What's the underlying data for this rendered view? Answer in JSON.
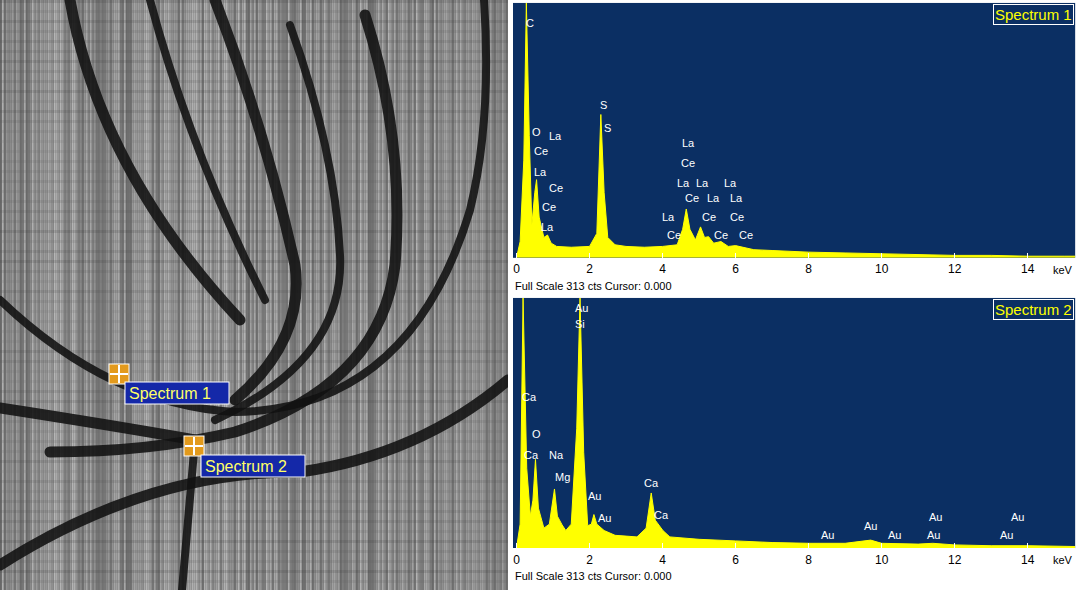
{
  "image": {
    "markers": [
      {
        "label": "Spectrum 1"
      },
      {
        "label": "Spectrum 2"
      }
    ]
  },
  "chart_data": [
    {
      "type": "area",
      "title": "Spectrum 1",
      "color": "#ffff00",
      "x": [
        0,
        0.1,
        0.2,
        0.27,
        0.35,
        0.42,
        0.5,
        0.55,
        0.62,
        0.75,
        0.85,
        0.95,
        1.1,
        1.5,
        2.0,
        2.2,
        2.31,
        2.4,
        2.5,
        2.7,
        3.0,
        3.5,
        4.0,
        4.4,
        4.55,
        4.65,
        4.75,
        4.9,
        5.04,
        5.15,
        5.26,
        5.4,
        5.6,
        5.8,
        6.0,
        6.5,
        7,
        8,
        9,
        10,
        11,
        12,
        13,
        14,
        15,
        15.3
      ],
      "values": [
        0,
        20,
        120,
        313,
        150,
        40,
        80,
        96,
        50,
        25,
        28,
        18,
        14,
        13,
        14,
        30,
        176,
        80,
        25,
        16,
        14,
        13,
        14,
        16,
        35,
        60,
        35,
        22,
        38,
        25,
        26,
        18,
        20,
        14,
        15,
        10,
        9,
        7,
        6,
        5,
        4,
        3,
        3,
        2,
        2,
        2
      ],
      "xlim": [
        -0.1,
        15.3
      ],
      "xticks": [
        0,
        2,
        4,
        6,
        8,
        10,
        12,
        14
      ],
      "ylim": [
        0,
        313
      ],
      "tick_labels": "x",
      "grid": false,
      "xlabel": "keV",
      "footer": "Full Scale 313 cts Cursor: 0.000",
      "annotations": [
        {
          "text": "C",
          "x": 0.36,
          "y": 288
        },
        {
          "text": "O",
          "x": 0.55,
          "y": 154
        },
        {
          "text": "La",
          "x": 1.07,
          "y": 150
        },
        {
          "text": "Ce",
          "x": 0.68,
          "y": 131
        },
        {
          "text": "La",
          "x": 0.66,
          "y": 106
        },
        {
          "text": "Ce",
          "x": 1.07,
          "y": 86
        },
        {
          "text": "Ce",
          "x": 0.9,
          "y": 63
        },
        {
          "text": "La",
          "x": 0.85,
          "y": 38
        },
        {
          "text": "S",
          "x": 2.38,
          "y": 188
        },
        {
          "text": "S",
          "x": 2.49,
          "y": 159
        },
        {
          "text": "La",
          "x": 4.71,
          "y": 141
        },
        {
          "text": "Ce",
          "x": 4.71,
          "y": 116
        },
        {
          "text": "La",
          "x": 4.58,
          "y": 92
        },
        {
          "text": "La",
          "x": 5.1,
          "y": 92
        },
        {
          "text": "La",
          "x": 5.85,
          "y": 92
        },
        {
          "text": "Ce",
          "x": 4.82,
          "y": 73
        },
        {
          "text": "La",
          "x": 5.4,
          "y": 73
        },
        {
          "text": "La",
          "x": 6.02,
          "y": 73
        },
        {
          "text": "La",
          "x": 4.16,
          "y": 50
        },
        {
          "text": "Ce",
          "x": 5.26,
          "y": 50
        },
        {
          "text": "Ce",
          "x": 6.05,
          "y": 50
        },
        {
          "text": "Ce",
          "x": 4.3,
          "y": 28
        },
        {
          "text": "Ce",
          "x": 5.6,
          "y": 28
        },
        {
          "text": "Ce",
          "x": 6.28,
          "y": 28
        }
      ]
    },
    {
      "type": "area",
      "title": "Spectrum 2",
      "color": "#ffff00",
      "x": [
        0,
        0.1,
        0.18,
        0.28,
        0.38,
        0.45,
        0.52,
        0.6,
        0.75,
        0.9,
        1.04,
        1.12,
        1.25,
        1.35,
        1.5,
        1.65,
        1.74,
        1.84,
        1.95,
        2.05,
        2.12,
        2.2,
        2.4,
        2.7,
        3.0,
        3.3,
        3.55,
        3.69,
        3.8,
        4.01,
        4.2,
        5,
        6,
        7,
        8,
        9,
        9.7,
        10,
        11,
        11.4,
        12,
        13,
        14,
        15,
        15.3
      ],
      "values": [
        0,
        30,
        313,
        100,
        40,
        60,
        111,
        50,
        25,
        30,
        74,
        40,
        29,
        22,
        30,
        150,
        313,
        120,
        28,
        30,
        42,
        30,
        22,
        16,
        15,
        14,
        25,
        69,
        35,
        22,
        14,
        11,
        9,
        7,
        6,
        6,
        10,
        6,
        5,
        6,
        4,
        3,
        3,
        2,
        2
      ],
      "xlim": [
        -0.1,
        15.3
      ],
      "xticks": [
        0,
        2,
        4,
        6,
        8,
        10,
        12,
        14
      ],
      "ylim": [
        0,
        313
      ],
      "tick_labels": "x",
      "grid": false,
      "xlabel": "keV",
      "footer": "Full Scale 313 cts Cursor: 0.000",
      "annotations": [
        {
          "text": "Au",
          "x": 1.78,
          "y": 300
        },
        {
          "text": "Si",
          "x": 1.75,
          "y": 280
        },
        {
          "text": "Ca",
          "x": 0.35,
          "y": 189
        },
        {
          "text": "O",
          "x": 0.55,
          "y": 143
        },
        {
          "text": "Ca",
          "x": 0.4,
          "y": 117
        },
        {
          "text": "Na",
          "x": 1.1,
          "y": 116
        },
        {
          "text": "Mg",
          "x": 1.25,
          "y": 89
        },
        {
          "text": "Au",
          "x": 2.14,
          "y": 65
        },
        {
          "text": "Au",
          "x": 2.4,
          "y": 38
        },
        {
          "text": "Ca",
          "x": 3.7,
          "y": 82
        },
        {
          "text": "Ca",
          "x": 3.97,
          "y": 42
        },
        {
          "text": "Au",
          "x": 8.52,
          "y": 16
        },
        {
          "text": "Au",
          "x": 9.7,
          "y": 28
        },
        {
          "text": "Au",
          "x": 10.35,
          "y": 16
        },
        {
          "text": "Au",
          "x": 11.48,
          "y": 39
        },
        {
          "text": "Au",
          "x": 11.42,
          "y": 16
        },
        {
          "text": "Au",
          "x": 13.73,
          "y": 39
        },
        {
          "text": "Au",
          "x": 13.42,
          "y": 16
        }
      ]
    }
  ]
}
